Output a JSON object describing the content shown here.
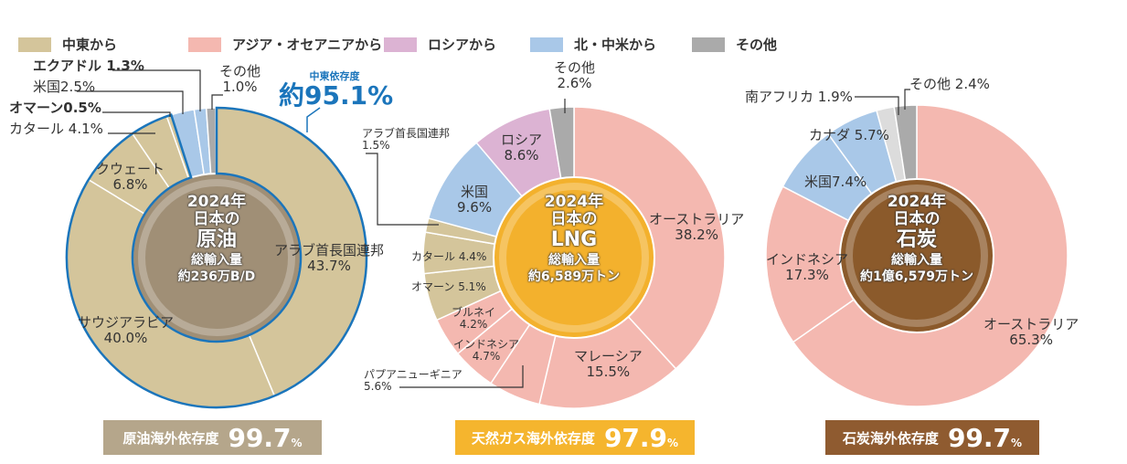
{
  "legend": [
    {
      "label": "中東から",
      "color": "#d4c59b"
    },
    {
      "label": "アジア・オセアニアから",
      "color": "#f4b8b0"
    },
    {
      "label": "ロシアから",
      "color": "#dcb3d3"
    },
    {
      "label": "北・中米から",
      "color": "#a9c8e8"
    },
    {
      "label": "その他",
      "color": "#aaaaaa"
    }
  ],
  "chart_data": [
    {
      "type": "pie",
      "title": "2024年 日本の 原油",
      "center": {
        "year": "2024年",
        "of": "日本の",
        "name": "原油",
        "sub": "総輸入量",
        "total": "約236万B/D"
      },
      "slices": [
        {
          "name": "アラブ首長国連邦",
          "value": 43.7,
          "region": "中東"
        },
        {
          "name": "サウジアラビア",
          "value": 40.0,
          "region": "中東"
        },
        {
          "name": "クウェート",
          "value": 6.8,
          "region": "中東"
        },
        {
          "name": "カタール",
          "value": 4.1,
          "region": "中東"
        },
        {
          "name": "オマーン",
          "value": 0.5,
          "region": "中東"
        },
        {
          "name": "米国",
          "value": 2.5,
          "region": "北・中米"
        },
        {
          "name": "エクアドル",
          "value": 1.3,
          "region": "北・中米"
        },
        {
          "name": "その他",
          "value": 1.0,
          "region": "その他"
        }
      ],
      "mideast": {
        "label": "中東依存度",
        "value": "約95.1%"
      },
      "badge": {
        "label": "原油海外依存度",
        "value": "99.7",
        "unit": "%"
      }
    },
    {
      "type": "pie",
      "title": "2024年 日本の LNG",
      "center": {
        "year": "2024年",
        "of": "日本の",
        "name": "LNG",
        "sub": "総輸入量",
        "total": "約6,589万トン"
      },
      "slices": [
        {
          "name": "オーストラリア",
          "value": 38.2,
          "region": "アジア・オセアニア"
        },
        {
          "name": "マレーシア",
          "value": 15.5,
          "region": "アジア・オセアニア"
        },
        {
          "name": "パプアニューギニア",
          "value": 5.6,
          "region": "アジア・オセアニア"
        },
        {
          "name": "インドネシア",
          "value": 4.7,
          "region": "アジア・オセアニア"
        },
        {
          "name": "ブルネイ",
          "value": 4.2,
          "region": "アジア・オセアニア"
        },
        {
          "name": "オマーン",
          "value": 5.1,
          "region": "中東"
        },
        {
          "name": "カタール",
          "value": 4.4,
          "region": "中東"
        },
        {
          "name": "アラブ首長国連邦",
          "value": 1.5,
          "region": "中東"
        },
        {
          "name": "米国",
          "value": 9.6,
          "region": "北・中米"
        },
        {
          "name": "ロシア",
          "value": 8.6,
          "region": "ロシア"
        },
        {
          "name": "その他",
          "value": 2.6,
          "region": "その他"
        }
      ],
      "badge": {
        "label": "天然ガス海外依存度",
        "value": "97.9",
        "unit": "%"
      }
    },
    {
      "type": "pie",
      "title": "2024年 日本の 石炭",
      "center": {
        "year": "2024年",
        "of": "日本の",
        "name": "石炭",
        "sub": "総輸入量",
        "total": "約1億6,579万トン"
      },
      "slices": [
        {
          "name": "オーストラリア",
          "value": 65.3,
          "region": "アジア・オセアニア"
        },
        {
          "name": "インドネシア",
          "value": 17.3,
          "region": "アジア・オセアニア"
        },
        {
          "name": "米国",
          "value": 7.4,
          "region": "北・中米"
        },
        {
          "name": "カナダ",
          "value": 5.7,
          "region": "北・中米"
        },
        {
          "name": "南アフリカ",
          "value": 1.9,
          "region": "その他"
        },
        {
          "name": "その他",
          "value": 2.4,
          "region": "その他"
        }
      ],
      "badge": {
        "label": "石炭海外依存度",
        "value": "99.7",
        "unit": "%"
      }
    }
  ]
}
